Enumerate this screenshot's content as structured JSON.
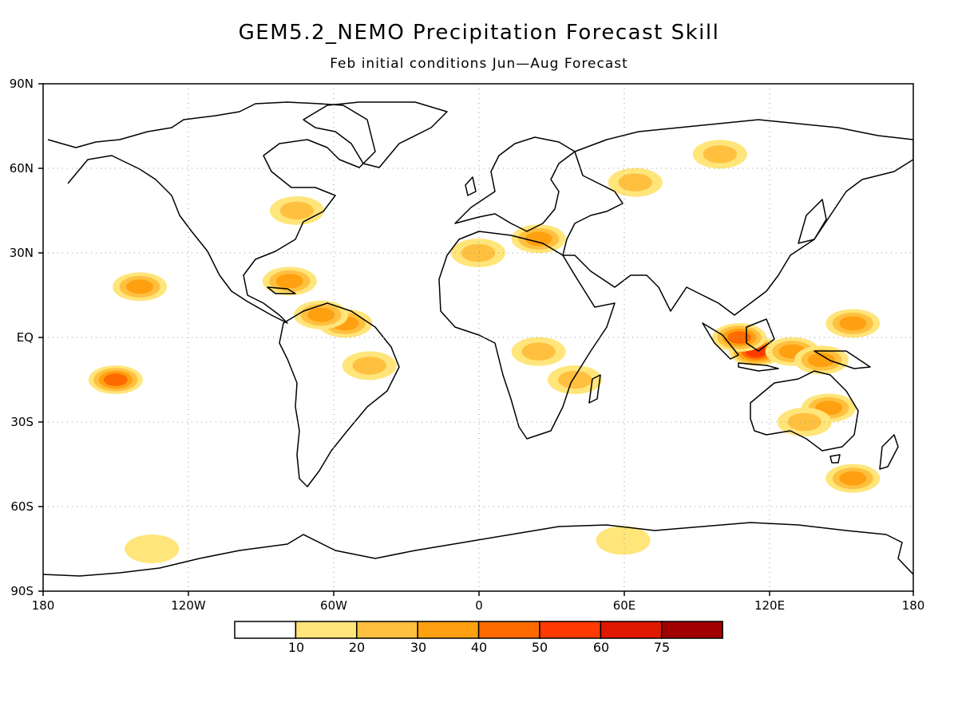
{
  "title": "GEM5.2_NEMO Precipitation Forecast Skill",
  "subtitle": "Feb initial conditions   Jun—Aug Forecast",
  "lat_labels": [
    "90N",
    "60N",
    "30N",
    "EQ",
    "30S",
    "60S",
    "90S"
  ],
  "lon_labels": [
    "180",
    "120W",
    "60W",
    "0",
    "60E",
    "120E",
    "180"
  ],
  "colorbar": {
    "labels": [
      "10",
      "20",
      "30",
      "40",
      "50",
      "60",
      "75"
    ],
    "colors": [
      "#ffffff",
      "#ffe57a",
      "#ffc040",
      "#ffa010",
      "#ff6a00",
      "#ff3a00",
      "#e01800",
      "#a00000"
    ]
  },
  "chart_data": {
    "type": "heatmap",
    "title": "GEM5.2_NEMO Precipitation Forecast Skill",
    "subtitle": "Feb initial conditions   Jun—Aug Forecast",
    "xlim": [
      -180,
      180
    ],
    "ylim": [
      -90,
      90
    ],
    "x_ticks": [
      "180",
      "120W",
      "60W",
      "0",
      "60E",
      "120E",
      "180"
    ],
    "y_ticks": [
      "90N",
      "60N",
      "30N",
      "EQ",
      "30S",
      "60S",
      "90S"
    ],
    "levels": [
      10,
      20,
      30,
      40,
      50,
      60,
      75
    ],
    "grid": true,
    "legend": "bottom",
    "regions": [
      {
        "lon": 115,
        "lat": -5,
        "value": 55
      },
      {
        "lon": 108,
        "lat": 0,
        "value": 40
      },
      {
        "lon": 130,
        "lat": -5,
        "value": 35
      },
      {
        "lon": 142,
        "lat": -8,
        "value": 30
      },
      {
        "lon": 155,
        "lat": 5,
        "value": 35
      },
      {
        "lon": 145,
        "lat": -25,
        "value": 35
      },
      {
        "lon": 135,
        "lat": -30,
        "value": 20
      },
      {
        "lon": -55,
        "lat": 5,
        "value": 30
      },
      {
        "lon": -65,
        "lat": 8,
        "value": 30
      },
      {
        "lon": -78,
        "lat": 20,
        "value": 30
      },
      {
        "lon": -45,
        "lat": -10,
        "value": 25
      },
      {
        "lon": -150,
        "lat": -15,
        "value": 40
      },
      {
        "lon": -140,
        "lat": 18,
        "value": 30
      },
      {
        "lon": -75,
        "lat": 45,
        "value": 20
      },
      {
        "lon": 25,
        "lat": 35,
        "value": 30
      },
      {
        "lon": 0,
        "lat": 30,
        "value": 25
      },
      {
        "lon": 65,
        "lat": 55,
        "value": 20
      },
      {
        "lon": 100,
        "lat": 65,
        "value": 25
      },
      {
        "lon": 25,
        "lat": -5,
        "value": 25
      },
      {
        "lon": 40,
        "lat": -15,
        "value": 20
      },
      {
        "lon": -135,
        "lat": -75,
        "value": 15
      },
      {
        "lon": 60,
        "lat": -72,
        "value": 10
      },
      {
        "lon": 155,
        "lat": -50,
        "value": 30
      }
    ]
  }
}
